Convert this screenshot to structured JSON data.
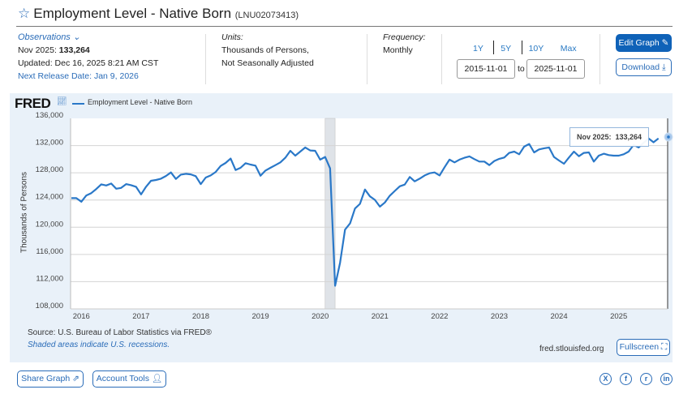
{
  "header": {
    "title": "Employment Level - Native Born",
    "series_id": "(LNU02073413)"
  },
  "observations": {
    "label": "Observations",
    "latest_label": "Nov 2025:",
    "latest_value": "133,264",
    "updated": "Updated: Dec 16, 2025 8:21 AM CST",
    "next_release": "Next Release Date: Jan 9, 2026"
  },
  "units": {
    "label": "Units:",
    "line1": "Thousands of Persons,",
    "line2": "Not Seasonally Adjusted"
  },
  "frequency": {
    "label": "Frequency:",
    "value": "Monthly"
  },
  "range": {
    "options": [
      "1Y",
      "5Y",
      "10Y",
      "Max"
    ],
    "start": "2015-11-01",
    "to": "to",
    "end": "2025-11-01"
  },
  "buttons": {
    "edit": "Edit Graph",
    "download": "Download",
    "fullscreen": "Fullscreen",
    "share": "Share Graph",
    "account": "Account Tools"
  },
  "chart_panel": {
    "logo": "FRED",
    "legend": "Employment Level - Native Born",
    "source": "Source: U.S. Bureau of Labor Statistics via FRED®",
    "recession_note": "Shaded areas indicate U.S. recessions.",
    "site": "fred.stlouisfed.org",
    "tooltip_label": "Nov 2025:",
    "tooltip_value": "133,264"
  },
  "social": [
    "X",
    "f",
    "r",
    "in"
  ],
  "colors": {
    "line": "#2a78c8",
    "accent": "#0f62b8",
    "panel": "#e9f1f9",
    "recession": "#dfe3e8"
  },
  "chart_data": {
    "type": "line",
    "title": "Employment Level - Native Born",
    "ylabel": "Thousands of Persons",
    "xlabel": "",
    "ylim": [
      108000,
      136000
    ],
    "yticks": [
      136000,
      132000,
      128000,
      124000,
      120000,
      116000,
      112000,
      108000
    ],
    "ytick_labels": [
      "136,000",
      "132,000",
      "128,000",
      "124,000",
      "120,000",
      "116,000",
      "112,000",
      "108,000"
    ],
    "xtick_labels": [
      "2016",
      "2017",
      "2018",
      "2019",
      "2020",
      "2021",
      "2022",
      "2023",
      "2024",
      "2025"
    ],
    "start": "2015-11",
    "recessions": [
      [
        "2020-02",
        "2020-04"
      ]
    ],
    "series": [
      {
        "name": "Employment Level - Native Born",
        "values": [
          124270,
          124270,
          123750,
          124670,
          125020,
          125620,
          126300,
          126140,
          126420,
          125660,
          125780,
          126340,
          126180,
          125940,
          124820,
          125940,
          126820,
          126940,
          127140,
          127530,
          128050,
          127100,
          127730,
          127850,
          127770,
          127500,
          126340,
          127300,
          127610,
          128130,
          129010,
          129450,
          130090,
          128410,
          128730,
          129410,
          129210,
          129050,
          127570,
          128330,
          128730,
          129130,
          129530,
          130210,
          131240,
          130520,
          131120,
          131720,
          131280,
          131240,
          129930,
          130330,
          128650,
          111390,
          114780,
          119640,
          120560,
          122750,
          123430,
          125540,
          124540,
          124030,
          123030,
          123630,
          124630,
          125340,
          126020,
          126260,
          127380,
          126740,
          127140,
          127610,
          127930,
          128050,
          127610,
          128810,
          129930,
          129530,
          129930,
          130210,
          130410,
          130010,
          129650,
          129650,
          129130,
          129730,
          130050,
          130250,
          130920,
          131120,
          130720,
          131840,
          132240,
          131000,
          131440,
          131600,
          131720,
          130330,
          129810,
          129330,
          130250,
          131120,
          130440,
          130920,
          131000,
          129650,
          130520,
          130800,
          130600,
          130520,
          130520,
          130720,
          131120,
          132120,
          131720,
          132400,
          133040,
          132480,
          133040,
          null,
          133264
        ]
      }
    ]
  }
}
